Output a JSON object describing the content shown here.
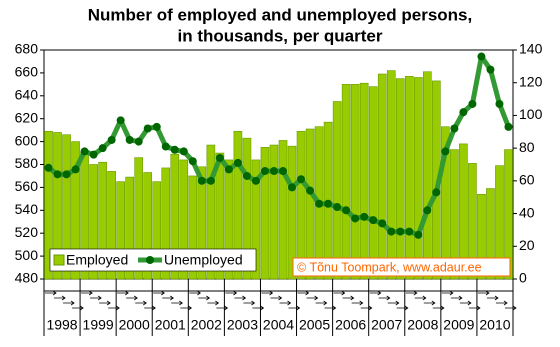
{
  "chart_data": {
    "type": "bar_line",
    "title": "Number of employed and unemployed persons,",
    "subtitle": "in thousands, per quarter",
    "years": [
      "1998",
      "1999",
      "2000",
      "2001",
      "2002",
      "2003",
      "2004",
      "2005",
      "2006",
      "2007",
      "2008",
      "2009",
      "2010"
    ],
    "series": [
      {
        "name": "Employed",
        "type": "bar",
        "color": "#99cc00",
        "axis": "y",
        "values": [
          609,
          608,
          606,
          600,
          591,
          580,
          582,
          574,
          565,
          569,
          586,
          573,
          565,
          577,
          589,
          584,
          570,
          578,
          597,
          590,
          584,
          609,
          603,
          584,
          595,
          597,
          601,
          596,
          609,
          611,
          613,
          617,
          635,
          650,
          650,
          651,
          648,
          659,
          662,
          655,
          657,
          656,
          661,
          653,
          613,
          593,
          598,
          581,
          554,
          559,
          579,
          593
        ]
      },
      {
        "name": "Unemployed",
        "type": "line",
        "color": "#339933",
        "axis": "y2",
        "values": [
          68,
          64,
          64,
          67,
          78,
          76,
          80,
          85,
          97,
          85,
          84,
          92,
          93,
          81,
          79,
          78,
          72,
          60,
          60,
          74,
          67,
          71,
          63,
          60,
          66,
          66,
          66,
          56,
          61,
          54,
          46,
          46,
          44,
          42,
          37,
          38,
          36,
          34,
          29,
          29,
          29,
          27,
          42,
          53,
          78,
          92,
          102,
          107,
          136,
          128,
          107,
          93
        ]
      }
    ],
    "ylim": [
      480,
      680
    ],
    "yticks": [
      480,
      500,
      520,
      540,
      560,
      580,
      600,
      620,
      640,
      660,
      680
    ],
    "y2lim": [
      0,
      140
    ],
    "y2ticks": [
      0,
      20,
      40,
      60,
      80,
      100,
      120,
      140
    ],
    "legend": "lower left",
    "credit": "© Tõnu Toompark, www.adaur.ee"
  }
}
